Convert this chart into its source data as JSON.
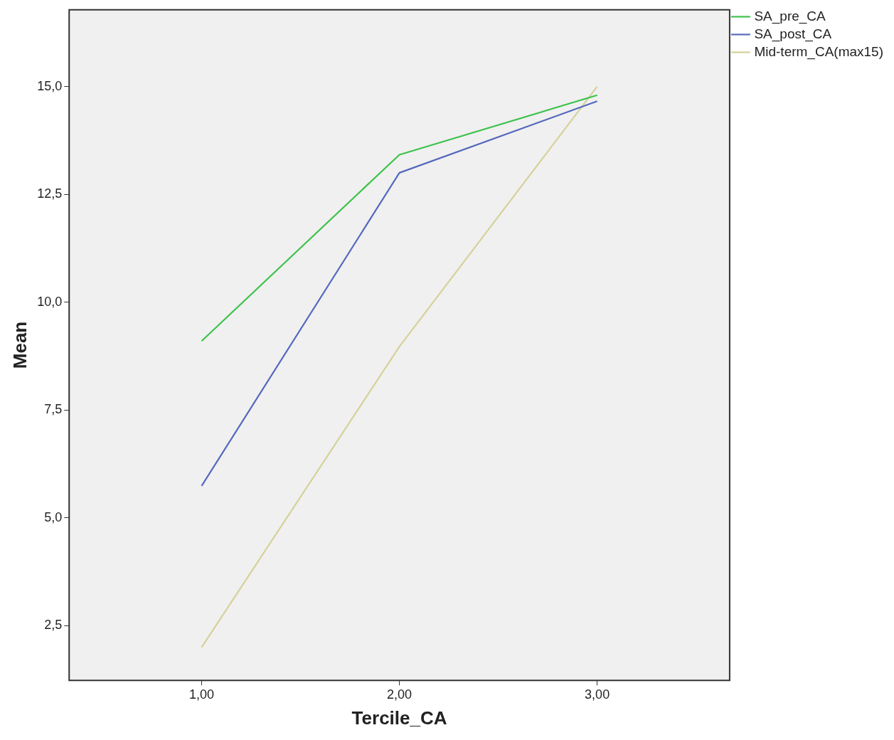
{
  "chart_data": {
    "type": "line",
    "xlabel": "Tercile_CA",
    "ylabel": "Mean",
    "x": [
      1,
      2,
      3
    ],
    "series": [
      {
        "name": "SA_pre_CA",
        "color": "#3cc24b",
        "values": [
          9.1,
          13.42,
          14.8
        ]
      },
      {
        "name": "SA_post_CA",
        "color": "#5568bd",
        "values": [
          5.74,
          13.0,
          14.66
        ]
      },
      {
        "name": "Mid-term_CA(max15)",
        "color": "#d6d19a",
        "values": [
          2.0,
          8.97,
          15.0
        ]
      }
    ],
    "xlim": [
      0.33,
      3.67
    ],
    "xticks": [
      {
        "value": 1,
        "label": "1,00"
      },
      {
        "value": 2,
        "label": "2,00"
      },
      {
        "value": 3,
        "label": "3,00"
      }
    ],
    "ylim": [
      1.23,
      16.78
    ],
    "yticks": [
      {
        "value": 2.5,
        "label": "2,5"
      },
      {
        "value": 5,
        "label": "5,0"
      },
      {
        "value": 7.5,
        "label": "7,5"
      },
      {
        "value": 10,
        "label": "10,0"
      },
      {
        "value": 12.5,
        "label": "12,5"
      },
      {
        "value": 15,
        "label": "15,0"
      }
    ],
    "grid": false,
    "legend": "top right",
    "marker": "none",
    "line_style": "solid"
  }
}
